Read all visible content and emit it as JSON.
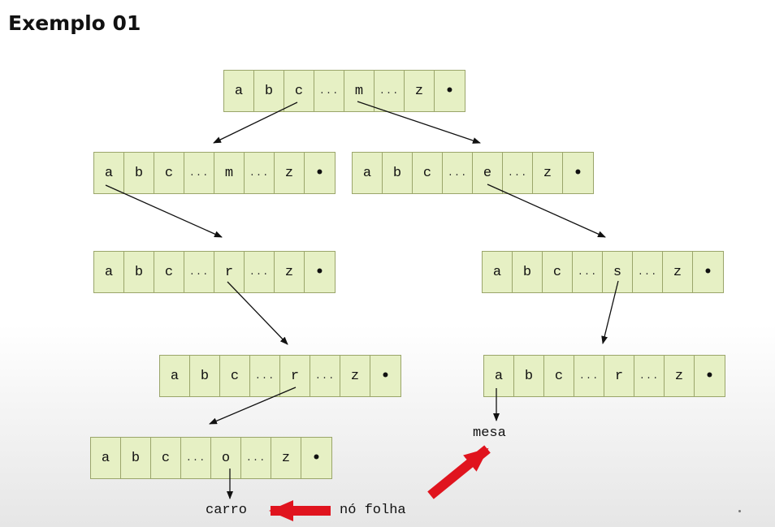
{
  "title": "Exemplo 01",
  "nodes": [
    {
      "id": "root",
      "cells": [
        "a",
        "b",
        "c",
        "...",
        "m",
        "...",
        "z",
        "•"
      ]
    },
    {
      "id": "level1-a",
      "cells": [
        "a",
        "b",
        "c",
        "...",
        "m",
        "...",
        "z",
        "•"
      ]
    },
    {
      "id": "level1-m",
      "cells": [
        "a",
        "b",
        "c",
        "...",
        "e",
        "...",
        "z",
        "•"
      ]
    },
    {
      "id": "level2-ca",
      "cells": [
        "a",
        "b",
        "c",
        "...",
        "r",
        "...",
        "z",
        "•"
      ]
    },
    {
      "id": "level2-me",
      "cells": [
        "a",
        "b",
        "c",
        "...",
        "s",
        "...",
        "z",
        "•"
      ]
    },
    {
      "id": "level3-car",
      "cells": [
        "a",
        "b",
        "c",
        "...",
        "r",
        "...",
        "z",
        "•"
      ]
    },
    {
      "id": "level3-mes",
      "cells": [
        "a",
        "b",
        "c",
        "...",
        "r",
        "...",
        "z",
        "•"
      ]
    },
    {
      "id": "level4-carr",
      "cells": [
        "a",
        "b",
        "c",
        "...",
        "o",
        "...",
        "z",
        "•"
      ]
    }
  ],
  "labels": {
    "carro": "carro",
    "mesa": "mesa",
    "leaf_note": "nó folha"
  },
  "colors": {
    "node_fill": "#e6f0c4",
    "node_border": "#9aa56a",
    "edge": "#111111",
    "highlight_arrow": "#e0141e"
  }
}
